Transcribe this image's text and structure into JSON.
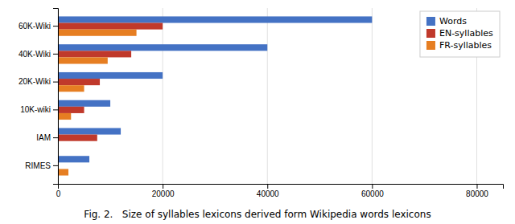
{
  "chart_data": {
    "type": "bar",
    "orientation": "horizontal",
    "title": "Fig. 2.   Size of syllables lexicons derived form Wikipedia words lexicons",
    "categories": [
      "RIMES",
      "IAM",
      "10K-wiki",
      "20K-Wiki",
      "40K-Wiki",
      "60K-Wiki"
    ],
    "series": [
      {
        "name": "Words",
        "color": "#4472C4",
        "values": [
          6000,
          12000,
          10000,
          20000,
          40000,
          60000
        ]
      },
      {
        "name": "EN-syllables",
        "color": "#C0392B",
        "values": [
          0,
          7500,
          5000,
          8000,
          14000,
          20000
        ]
      },
      {
        "name": "FR-syllables",
        "color": "#E67E22",
        "values": [
          2000,
          0,
          2500,
          5000,
          9500,
          15000
        ]
      }
    ],
    "xlim": [
      0,
      85000
    ],
    "xticks": [
      0,
      20000,
      40000,
      60000,
      80000
    ],
    "grid": true,
    "legend": "upper right"
  }
}
